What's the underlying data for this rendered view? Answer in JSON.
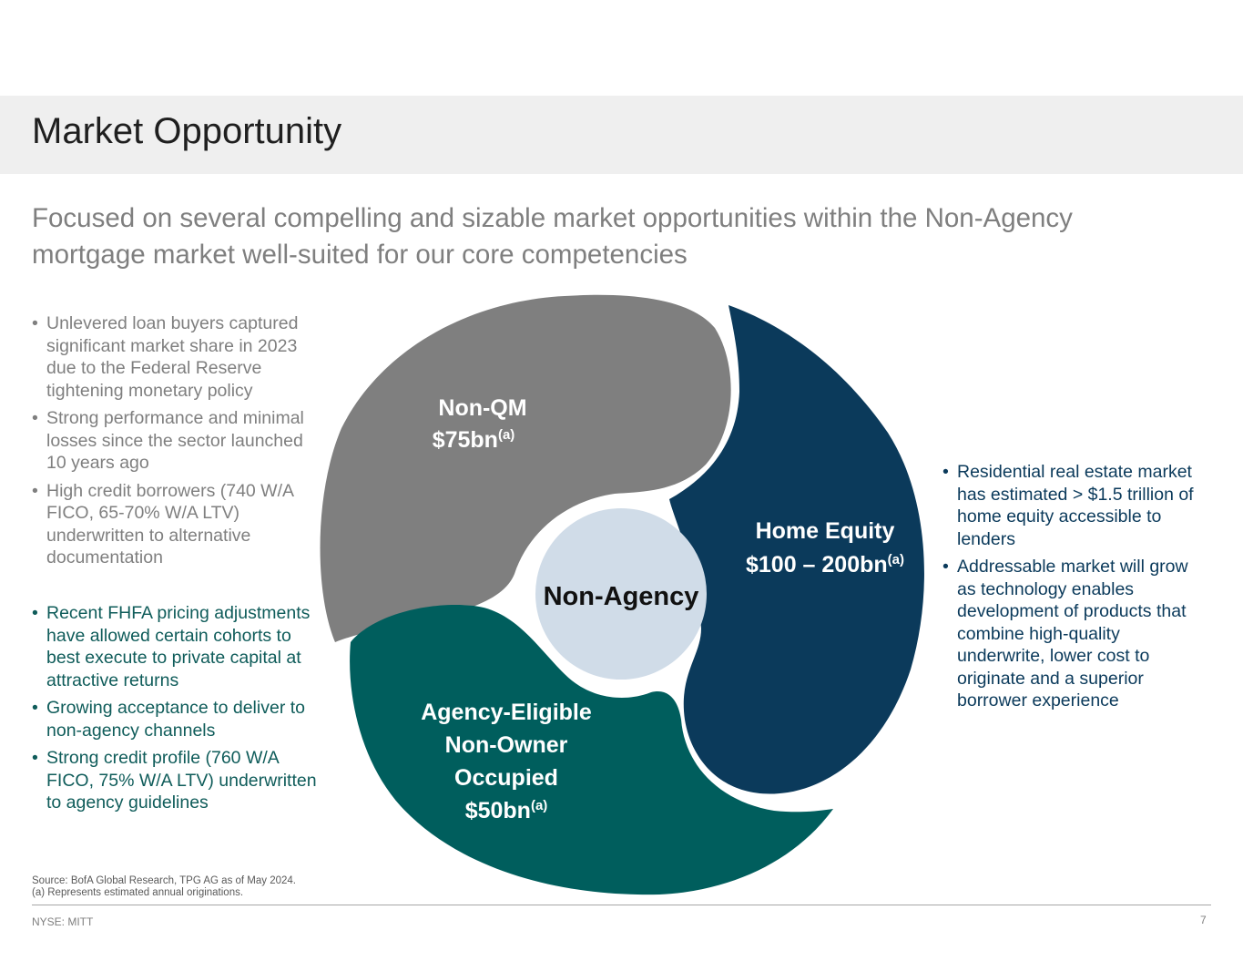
{
  "header": {
    "title": "Market Opportunity",
    "subtitle": "Focused on several compelling and sizable market opportunities within the Non-Agency mortgage market well-suited for our core competencies"
  },
  "left_gray_bullets": [
    "Unlevered loan buyers captured significant market share in 2023 due to the Federal Reserve tightening monetary policy",
    "Strong performance and minimal losses since the sector launched 10 years ago",
    "High credit borrowers  (740 W/A FICO, 65-70% W/A LTV) underwritten to alternative documentation"
  ],
  "left_teal_bullets": [
    "Recent FHFA pricing adjustments have allowed certain cohorts to best execute to private capital at attractive returns",
    "Growing acceptance to deliver to non-agency channels",
    "Strong credit profile (760 W/A FICO, 75% W/A LTV) underwritten to agency guidelines"
  ],
  "right_navy_bullets": [
    "Residential real estate market has estimated > $1.5 trillion of home equity accessible to lenders",
    "Addressable market will grow as technology enables development of products that combine high-quality underwrite, lower cost to originate and a superior borrower experience"
  ],
  "diagram": {
    "center": "Non-Agency",
    "segments": {
      "non_qm": {
        "line1": "Non-QM",
        "line2": "$75bn",
        "sup": "(a)",
        "color": "#7f7f7f"
      },
      "home_equity": {
        "line1": "Home Equity",
        "line2": "$100 – 200bn",
        "sup": "(a)",
        "color": "#0b3a5b"
      },
      "agency": {
        "line1": "Agency-Eligible",
        "line2": "Non-Owner",
        "line3": "Occupied",
        "line4": "$50bn",
        "sup": "(a)",
        "color": "#005e5d"
      }
    },
    "center_color": "#d0dce8"
  },
  "footnotes": {
    "source": "Source: BofA Global Research, TPG AG as of May 2024.",
    "note": "(a) Represents estimated annual originations."
  },
  "footer": {
    "ticker": "NYSE: MITT",
    "page": "7"
  }
}
